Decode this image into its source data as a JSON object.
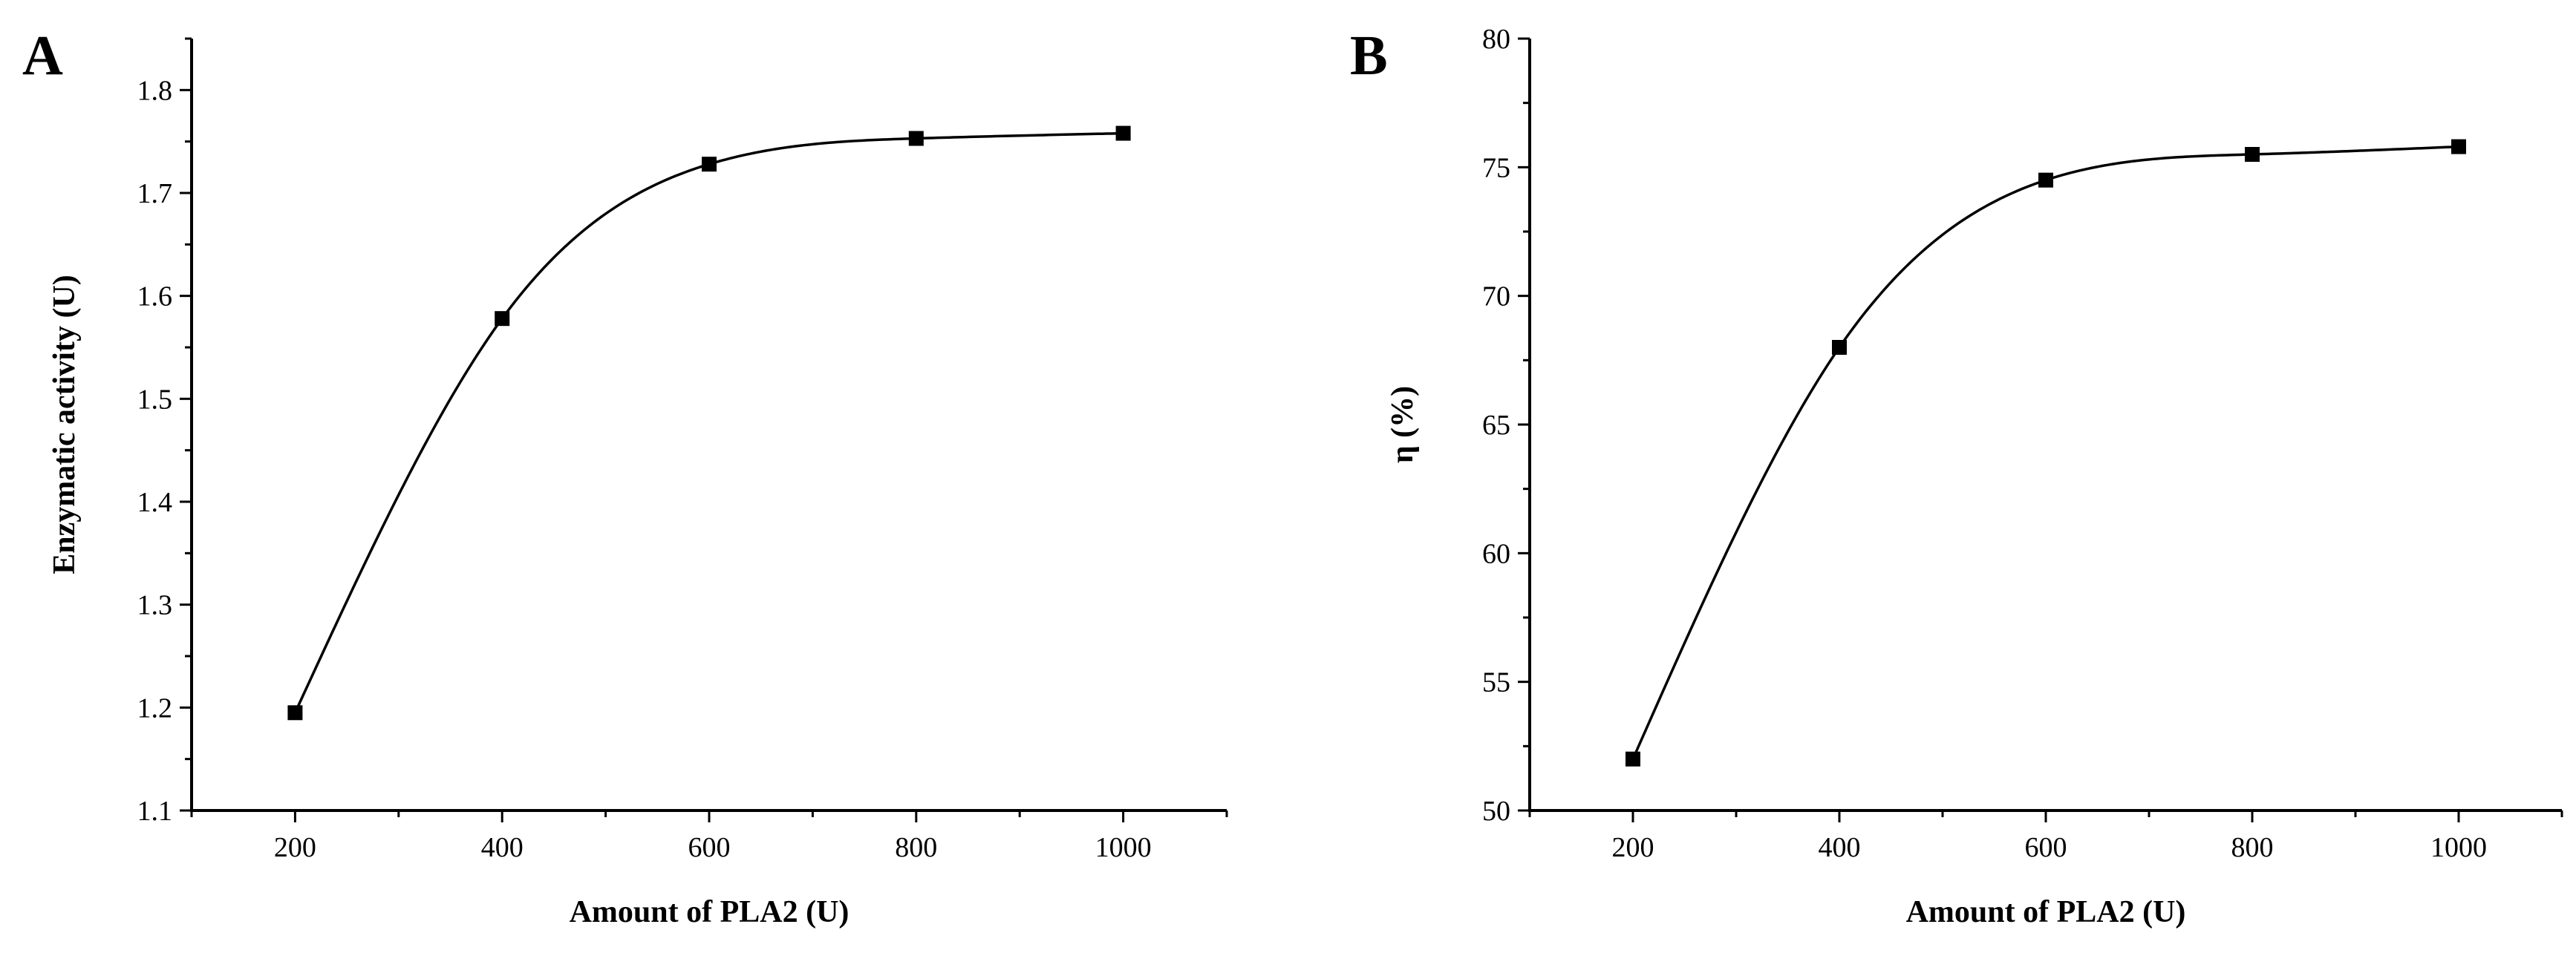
{
  "chart_data": [
    {
      "type": "line",
      "panel_label": "A",
      "xlabel": "Amount of PLA2 (U)",
      "ylabel": "Enzymatic activity (U)",
      "xlim": [
        100,
        1100
      ],
      "ylim": [
        1.1,
        1.85
      ],
      "x_ticks": [
        200,
        400,
        600,
        800,
        1000
      ],
      "x_tick_labels": [
        "200",
        "400",
        "600",
        "800",
        "1000"
      ],
      "y_ticks": [
        1.1,
        1.2,
        1.3,
        1.4,
        1.5,
        1.6,
        1.7,
        1.8
      ],
      "y_tick_labels": [
        "1.1",
        "1.2",
        "1.3",
        "1.4",
        "1.5",
        "1.6",
        "1.7",
        "1.8"
      ],
      "series": [
        {
          "x": [
            200,
            400,
            600,
            800,
            1000
          ],
          "y": [
            1.195,
            1.578,
            1.728,
            1.753,
            1.758
          ],
          "marker": "square",
          "smoothed": true
        }
      ],
      "grid": false,
      "legend": false
    },
    {
      "type": "line",
      "panel_label": "B",
      "xlabel": "Amount of PLA2 (U)",
      "ylabel": "η (%)",
      "xlim": [
        100,
        1100
      ],
      "ylim": [
        50,
        80
      ],
      "x_ticks": [
        200,
        400,
        600,
        800,
        1000
      ],
      "x_tick_labels": [
        "200",
        "400",
        "600",
        "800",
        "1000"
      ],
      "y_ticks": [
        50,
        55,
        60,
        65,
        70,
        75,
        80
      ],
      "y_tick_labels": [
        "50",
        "55",
        "60",
        "65",
        "70",
        "75",
        "80"
      ],
      "series": [
        {
          "x": [
            200,
            400,
            600,
            800,
            1000
          ],
          "y": [
            52.0,
            68.0,
            74.5,
            75.5,
            75.8
          ],
          "marker": "square",
          "smoothed": true
        }
      ],
      "grid": false,
      "legend": false
    }
  ]
}
